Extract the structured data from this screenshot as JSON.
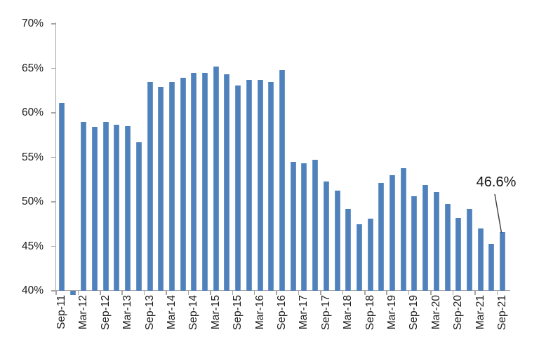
{
  "chart_data": {
    "type": "bar",
    "title": "",
    "xlabel": "",
    "ylabel": "",
    "grid": false,
    "legend": "none",
    "bar_color": "#4f81bd",
    "axis_color": "#a6a6a6",
    "text_color": "#1c1c1c",
    "y_axis": {
      "min": 40,
      "max": 70,
      "tick_step": 5,
      "unit": "%",
      "tick_labels": [
        "70%",
        "65%",
        "60%",
        "55%",
        "50%",
        "45%",
        "40%"
      ]
    },
    "label_interval": 2,
    "displayed_x_labels": [
      "Sep-11",
      "Mar-12",
      "Sep-12",
      "Mar-13",
      "Sep-13",
      "Mar-14",
      "Sep-14",
      "Mar-15",
      "Sep-15",
      "Mar-16",
      "Sep-16",
      "Mar-17",
      "Sep-17",
      "Mar-18",
      "Sep-18",
      "Mar-19",
      "Sep-19",
      "Mar-20",
      "Sep-20",
      "Mar-21",
      "Sep-21"
    ],
    "categories": [
      "Sep-11",
      "Dec-11",
      "Mar-12",
      "Jun-12",
      "Sep-12",
      "Dec-12",
      "Mar-13",
      "Jun-13",
      "Sep-13",
      "Dec-13",
      "Mar-14",
      "Jun-14",
      "Sep-14",
      "Dec-14",
      "Mar-15",
      "Jun-15",
      "Sep-15",
      "Dec-15",
      "Mar-16",
      "Jun-16",
      "Sep-16",
      "Dec-16",
      "Mar-17",
      "Jun-17",
      "Sep-17",
      "Dec-17",
      "Mar-18",
      "Jun-18",
      "Sep-18",
      "Dec-18",
      "Mar-19",
      "Jun-19",
      "Sep-19",
      "Dec-19",
      "Mar-20",
      "Jun-20",
      "Sep-20",
      "Dec-20",
      "Mar-21",
      "Jun-21",
      "Sep-21"
    ],
    "values": [
      61.1,
      39.5,
      59.0,
      58.4,
      59.0,
      58.7,
      58.5,
      56.7,
      63.5,
      62.9,
      63.5,
      63.9,
      64.5,
      64.5,
      65.2,
      64.3,
      63.1,
      63.7,
      63.7,
      63.5,
      64.8,
      54.5,
      54.3,
      54.7,
      52.3,
      51.3,
      49.2,
      47.5,
      48.1,
      52.1,
      53.0,
      53.8,
      50.6,
      51.9,
      51.1,
      49.8,
      48.2,
      49.2,
      47.0,
      45.3,
      46.6
    ],
    "annotation": {
      "text": "46.6%",
      "target_category": "Sep-21",
      "target_value": 46.6
    }
  }
}
